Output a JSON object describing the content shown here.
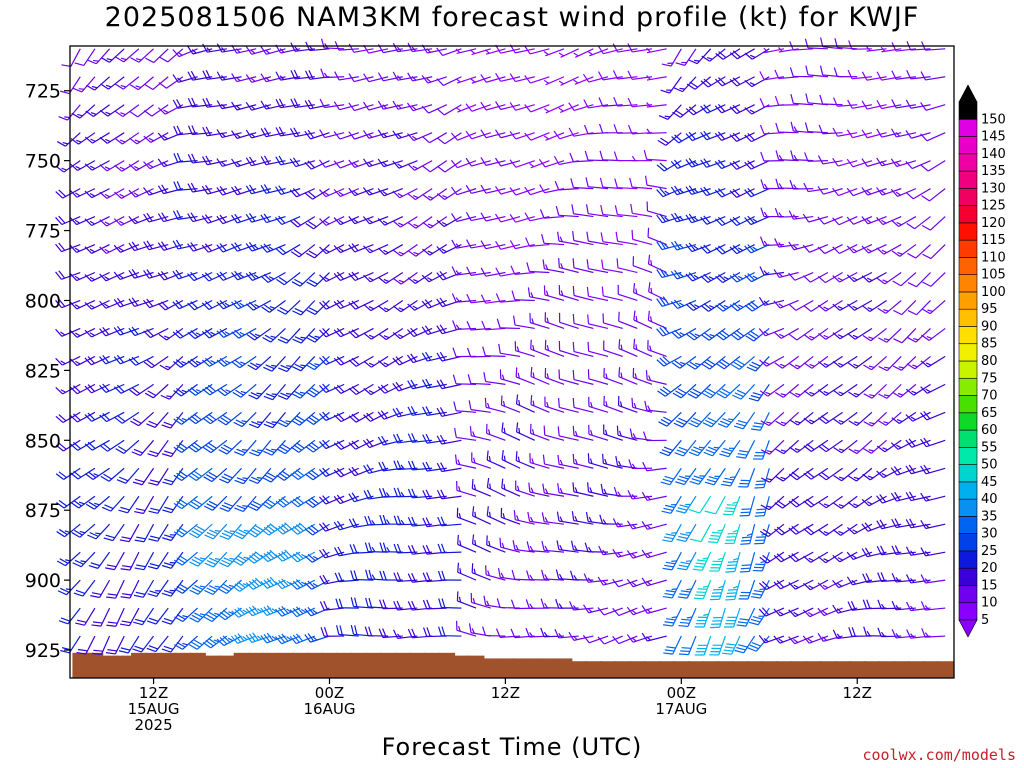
{
  "chart_data": {
    "type": "wind_barb_time_height",
    "title": "2025081506 NAM3KM forecast wind profile (kt) for KWJF",
    "xlabel": "Forecast Time (UTC)",
    "ylabel": "",
    "y_axis": {
      "reversed": true,
      "ylim": [
        935,
        709
      ],
      "ticks": [
        725,
        750,
        775,
        800,
        825,
        850,
        875,
        900,
        925
      ]
    },
    "x_axis": {
      "tick_labels": [
        {
          "lines": [
            "12Z",
            "15AUG",
            "2025"
          ],
          "hour": 6
        },
        {
          "lines": [
            "00Z",
            "16AUG"
          ],
          "hour": 18
        },
        {
          "lines": [
            "12Z"
          ],
          "hour": 30
        },
        {
          "lines": [
            "00Z",
            "17AUG"
          ],
          "hour": 42
        },
        {
          "lines": [
            "12Z"
          ],
          "hour": 54
        }
      ],
      "xlim": [
        0.3,
        60.6
      ],
      "times": [
        1,
        2,
        3,
        4,
        5,
        6,
        7,
        8,
        9,
        10,
        11,
        12,
        13,
        14,
        15,
        16,
        17,
        18,
        19,
        20,
        21,
        22,
        23,
        24,
        25,
        26,
        27,
        28,
        29,
        30,
        31,
        32,
        33,
        34,
        35,
        36,
        37,
        38,
        39,
        40,
        41,
        42,
        43,
        44,
        45,
        46,
        47,
        48,
        49,
        50,
        51,
        52,
        53,
        54,
        55,
        56,
        57,
        58,
        59,
        60
      ]
    },
    "levels": [
      710,
      720,
      730,
      740,
      750,
      760,
      770,
      780,
      790,
      800,
      810,
      820,
      830,
      840,
      850,
      860,
      870,
      880,
      890,
      900,
      910,
      920,
      930
    ],
    "colorbar": {
      "units": "kt",
      "values": [
        5,
        10,
        15,
        20,
        25,
        30,
        35,
        40,
        45,
        50,
        55,
        60,
        65,
        70,
        75,
        80,
        85,
        90,
        95,
        100,
        105,
        110,
        115,
        120,
        125,
        130,
        135,
        140,
        145,
        150
      ],
      "colors": [
        "#8a00ff",
        "#6f00f0",
        "#3a00d8",
        "#0d1adb",
        "#0042e8",
        "#0064f2",
        "#0a8ff2",
        "#00b0ee",
        "#00d4d0",
        "#00e8aa",
        "#00e070",
        "#10d828",
        "#48e000",
        "#88ec00",
        "#c8f400",
        "#f0f000",
        "#ffdf00",
        "#ffc000",
        "#ffa000",
        "#ff8400",
        "#ff6200",
        "#ff3c00",
        "#ff1000",
        "#f50030",
        "#f00060",
        "#f00080",
        "#ee00a4",
        "#e800c8",
        "#e000e4",
        "#000000"
      ]
    },
    "terrain": {
      "color": "#a0522d",
      "surface_hpa": [
        926,
        926,
        927,
        927,
        926,
        926,
        926,
        926,
        926,
        927,
        927,
        926,
        926,
        926,
        926,
        926,
        926,
        926,
        926,
        926,
        926,
        926,
        926,
        926,
        926,
        926,
        927,
        927,
        928,
        928,
        928,
        928,
        928,
        928,
        929,
        929,
        929,
        929,
        929,
        929,
        929,
        929,
        929,
        929,
        929,
        929,
        929,
        929,
        929,
        929,
        929,
        929,
        929,
        929,
        929,
        929,
        929,
        929,
        929,
        929
      ]
    },
    "wind_model": {
      "note": "barbs show direction (deg, from) and speed (kt) at each time and level",
      "segments": [
        {
          "hours": [
            1,
            8
          ],
          "dir": [
            210,
            250
          ],
          "speed": [
            10,
            22
          ]
        },
        {
          "hours": [
            9,
            18
          ],
          "dir": [
            225,
            260
          ],
          "speed": [
            10,
            30
          ]
        },
        {
          "hours": [
            19,
            27
          ],
          "dir": [
            240,
            270
          ],
          "speed": [
            8,
            22
          ]
        },
        {
          "hours": [
            28,
            41
          ],
          "dir": [
            250,
            290
          ],
          "speed": [
            5,
            15
          ]
        },
        {
          "hours": [
            42,
            48
          ],
          "dir": [
            200,
            250
          ],
          "speed": [
            10,
            35
          ]
        },
        {
          "hours": [
            49,
            60
          ],
          "dir": [
            230,
            270
          ],
          "speed": [
            6,
            18
          ]
        }
      ]
    }
  },
  "credit": "coolwx.com/models"
}
